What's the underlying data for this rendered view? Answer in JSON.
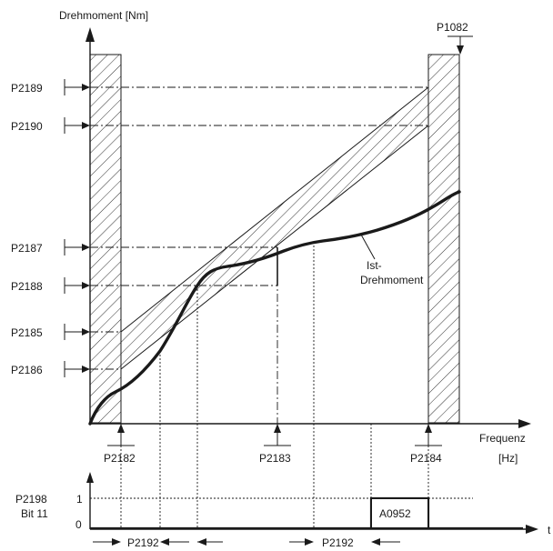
{
  "axes": {
    "y_label": "Drehmoment [Nm]",
    "x_label_line1": "Frequenz",
    "x_label_line2": "[Hz]"
  },
  "torque_params": {
    "p2189": "P2189",
    "p2190": "P2190",
    "p2187": "P2187",
    "p2188": "P2188",
    "p2185": "P2185",
    "p2186": "P2186"
  },
  "freq_params": {
    "p2182": "P2182",
    "p2183": "P2183",
    "p2184": "P2184",
    "p1082": "P1082"
  },
  "curve_label": {
    "line1": "Ist-",
    "line2": "Drehmoment"
  },
  "signal": {
    "param_line1": "P2198",
    "param_line2": "Bit 11",
    "level_high": "1",
    "level_low": "0",
    "warning": "A0952",
    "delay_param_1": "P2192",
    "delay_param_2": "P2192",
    "time_axis": "t"
  },
  "colors": {
    "line": "#1a1a1a",
    "background": "#ffffff"
  }
}
